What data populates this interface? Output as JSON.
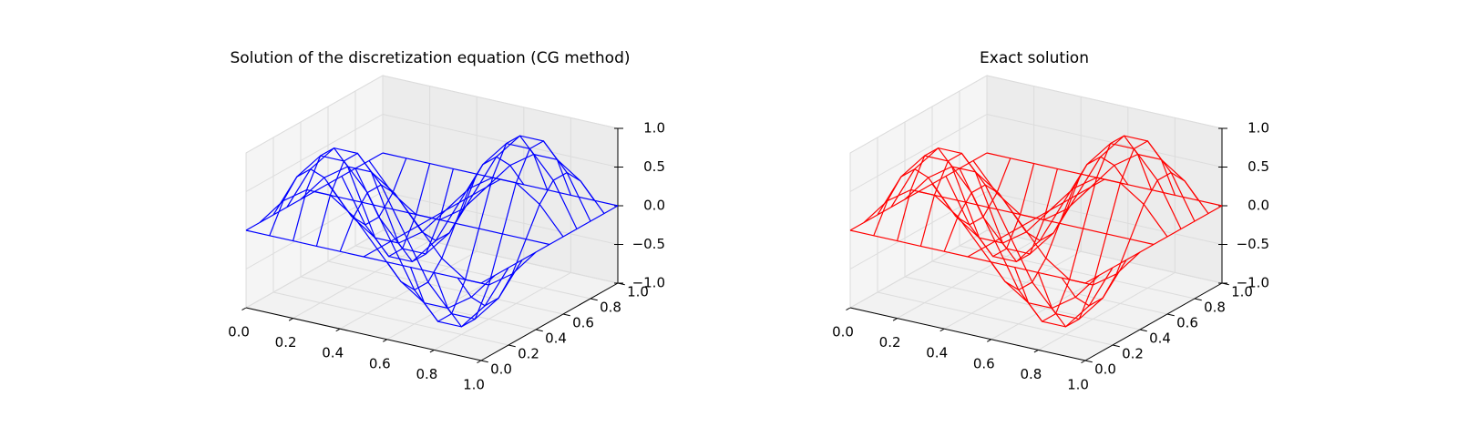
{
  "chart_data": [
    {
      "type": "surface3d",
      "title": "Solution of the discretization equation (CG method)",
      "color": "#0000ff",
      "x": [
        0,
        0.1,
        0.2,
        0.3,
        0.4,
        0.5,
        0.6,
        0.7,
        0.8,
        0.9,
        1
      ],
      "y": [
        0,
        0.1,
        0.2,
        0.3,
        0.4,
        0.5,
        0.6,
        0.7,
        0.8,
        0.9,
        1
      ],
      "z": [
        [
          0,
          0,
          0,
          0,
          0,
          0,
          0,
          0,
          0,
          0,
          0
        ],
        [
          0,
          0.35,
          0.56,
          0.56,
          0.35,
          0,
          -0.35,
          -0.56,
          -0.56,
          -0.35,
          0
        ],
        [
          0,
          0.56,
          0.9,
          0.9,
          0.56,
          0,
          -0.56,
          -0.9,
          -0.9,
          -0.56,
          0
        ],
        [
          0,
          0.56,
          0.9,
          0.9,
          0.56,
          0,
          -0.56,
          -0.9,
          -0.9,
          -0.56,
          0
        ],
        [
          0,
          0.35,
          0.56,
          0.56,
          0.35,
          0,
          -0.35,
          -0.56,
          -0.56,
          -0.35,
          0
        ],
        [
          0,
          0,
          0,
          0,
          0,
          0,
          0,
          0,
          0,
          0,
          0
        ],
        [
          0,
          -0.35,
          -0.56,
          -0.56,
          -0.35,
          0,
          0.35,
          0.56,
          0.56,
          0.35,
          0
        ],
        [
          0,
          -0.56,
          -0.9,
          -0.9,
          -0.56,
          0,
          0.56,
          0.9,
          0.9,
          0.56,
          0
        ],
        [
          0,
          -0.56,
          -0.9,
          -0.9,
          -0.56,
          0,
          0.56,
          0.9,
          0.9,
          0.56,
          0
        ],
        [
          0,
          -0.35,
          -0.56,
          -0.56,
          -0.35,
          0,
          0.35,
          0.56,
          0.56,
          0.35,
          0
        ],
        [
          0,
          0,
          0,
          0,
          0,
          0,
          0,
          0,
          0,
          0,
          0
        ]
      ],
      "xlim": [
        0,
        1
      ],
      "ylim": [
        0,
        1
      ],
      "zlim": [
        -1,
        1
      ],
      "xticks": [
        {
          "value": 0,
          "label": "0.0"
        },
        {
          "value": 0.2,
          "label": "0.2"
        },
        {
          "value": 0.4,
          "label": "0.4"
        },
        {
          "value": 0.6,
          "label": "0.6"
        },
        {
          "value": 0.8,
          "label": "0.8"
        },
        {
          "value": 1,
          "label": "1.0"
        }
      ],
      "yticks": [
        {
          "value": 0,
          "label": "0.0"
        },
        {
          "value": 0.2,
          "label": "0.2"
        },
        {
          "value": 0.4,
          "label": "0.4"
        },
        {
          "value": 0.6,
          "label": "0.6"
        },
        {
          "value": 0.8,
          "label": "0.8"
        },
        {
          "value": 1,
          "label": "1.0"
        }
      ],
      "zticks": [
        {
          "value": -1,
          "label": "−1.0"
        },
        {
          "value": -0.5,
          "label": "−0.5"
        },
        {
          "value": 0,
          "label": "0.0"
        },
        {
          "value": 0.5,
          "label": "0.5"
        },
        {
          "value": 1,
          "label": "1.0"
        }
      ]
    },
    {
      "type": "surface3d",
      "title": "Exact solution",
      "color": "#ff0000",
      "x": [
        0,
        0.1,
        0.2,
        0.3,
        0.4,
        0.5,
        0.6,
        0.7,
        0.8,
        0.9,
        1
      ],
      "y": [
        0,
        0.1,
        0.2,
        0.3,
        0.4,
        0.5,
        0.6,
        0.7,
        0.8,
        0.9,
        1
      ],
      "z": [
        [
          0,
          0,
          0,
          0,
          0,
          0,
          0,
          0,
          0,
          0,
          0
        ],
        [
          0,
          0.35,
          0.56,
          0.56,
          0.35,
          0,
          -0.35,
          -0.56,
          -0.56,
          -0.35,
          0
        ],
        [
          0,
          0.56,
          0.9,
          0.9,
          0.56,
          0,
          -0.56,
          -0.9,
          -0.9,
          -0.56,
          0
        ],
        [
          0,
          0.56,
          0.9,
          0.9,
          0.56,
          0,
          -0.56,
          -0.9,
          -0.9,
          -0.56,
          0
        ],
        [
          0,
          0.35,
          0.56,
          0.56,
          0.35,
          0,
          -0.35,
          -0.56,
          -0.56,
          -0.35,
          0
        ],
        [
          0,
          0,
          0,
          0,
          0,
          0,
          0,
          0,
          0,
          0,
          0
        ],
        [
          0,
          -0.35,
          -0.56,
          -0.56,
          -0.35,
          0,
          0.35,
          0.56,
          0.56,
          0.35,
          0
        ],
        [
          0,
          -0.56,
          -0.9,
          -0.9,
          -0.56,
          0,
          0.56,
          0.9,
          0.9,
          0.56,
          0
        ],
        [
          0,
          -0.56,
          -0.9,
          -0.9,
          -0.56,
          0,
          0.56,
          0.9,
          0.9,
          0.56,
          0
        ],
        [
          0,
          -0.35,
          -0.56,
          -0.56,
          -0.35,
          0,
          0.35,
          0.56,
          0.56,
          0.35,
          0
        ],
        [
          0,
          0,
          0,
          0,
          0,
          0,
          0,
          0,
          0,
          0,
          0
        ]
      ],
      "xlim": [
        0,
        1
      ],
      "ylim": [
        0,
        1
      ],
      "zlim": [
        -1,
        1
      ],
      "xticks": [
        {
          "value": 0,
          "label": "0.0"
        },
        {
          "value": 0.2,
          "label": "0.2"
        },
        {
          "value": 0.4,
          "label": "0.4"
        },
        {
          "value": 0.6,
          "label": "0.6"
        },
        {
          "value": 0.8,
          "label": "0.8"
        },
        {
          "value": 1,
          "label": "1.0"
        }
      ],
      "yticks": [
        {
          "value": 0,
          "label": "0.0"
        },
        {
          "value": 0.2,
          "label": "0.2"
        },
        {
          "value": 0.4,
          "label": "0.4"
        },
        {
          "value": 0.6,
          "label": "0.6"
        },
        {
          "value": 0.8,
          "label": "0.8"
        },
        {
          "value": 1,
          "label": "1.0"
        }
      ],
      "zticks": [
        {
          "value": -1,
          "label": "−1.0"
        },
        {
          "value": -0.5,
          "label": "−0.5"
        },
        {
          "value": 0,
          "label": "0.0"
        },
        {
          "value": 0.5,
          "label": "0.5"
        },
        {
          "value": 1,
          "label": "1.0"
        }
      ]
    }
  ]
}
